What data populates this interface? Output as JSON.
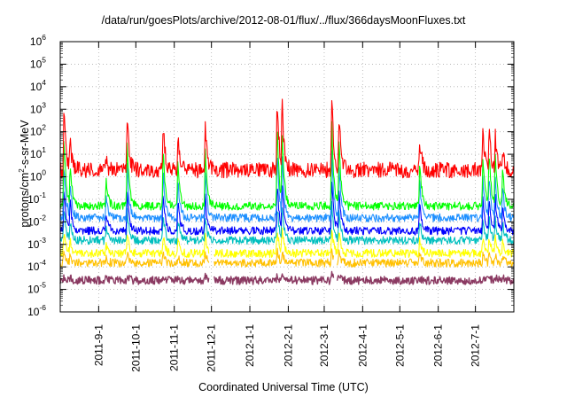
{
  "chart_data": {
    "type": "line",
    "title": "/data/run/goesPlots/archive/2012-08-01/flux/../flux/366daysMoonFluxes.txt",
    "xlabel": "Coordinated Universal Time (UTC)",
    "ylabel": {
      "pre": "protons/cm",
      "sup": "2",
      "post": "-s-sr-MeV"
    },
    "xlim": [
      "2011-08-01",
      "2012-08-01"
    ],
    "x_ticks": [
      "2011-9-1",
      "2011-10-1",
      "2011-11-1",
      "2011-12-1",
      "2012-1-1",
      "2012-2-1",
      "2012-3-1",
      "2012-4-1",
      "2012-5-1",
      "2012-6-1",
      "2012-7-1"
    ],
    "y_scale": "log",
    "ylim": [
      1e-06,
      1000000.0
    ],
    "y_ticks": [
      {
        "base": "10",
        "exp": "-6"
      },
      {
        "base": "10",
        "exp": "-5"
      },
      {
        "base": "10",
        "exp": "-4"
      },
      {
        "base": "10",
        "exp": "-3"
      },
      {
        "base": "10",
        "exp": "-2"
      },
      {
        "base": "10",
        "exp": "-1"
      },
      {
        "base": "10",
        "exp": "0"
      },
      {
        "base": "10",
        "exp": "1"
      },
      {
        "base": "10",
        "exp": "2"
      },
      {
        "base": "10",
        "exp": "3"
      },
      {
        "base": "10",
        "exp": "4"
      },
      {
        "base": "10",
        "exp": "5"
      },
      {
        "base": "10",
        "exp": "6"
      }
    ],
    "grid": true,
    "legend": "none",
    "series": [
      {
        "color": "#8b3a62",
        "baseline": 2.5e-05,
        "points": [
          [
            "2011-08-01",
            2.5e-05
          ],
          [
            "2011-12-01",
            2.5e-05
          ],
          [
            "2012-03-01",
            2.5e-05
          ],
          [
            "2012-08-01",
            2.5e-05
          ]
        ]
      },
      {
        "color": "#ffc000",
        "baseline": 0.00015,
        "points": [
          [
            "2011-08-01",
            0.00015
          ],
          [
            "2012-08-01",
            0.00015
          ]
        ]
      },
      {
        "color": "#ffff00",
        "baseline": 0.0004,
        "points": [
          [
            "2011-08-01",
            0.0004
          ],
          [
            "2012-08-01",
            0.0004
          ]
        ]
      },
      {
        "color": "#00bfbf",
        "baseline": 0.0015,
        "points": [
          [
            "2011-08-01",
            0.0015
          ],
          [
            "2012-08-01",
            0.0015
          ]
        ]
      },
      {
        "color": "#0000ff",
        "baseline": 0.004,
        "points": [
          [
            "2011-08-01",
            0.004
          ],
          [
            "2012-08-01",
            0.004
          ]
        ]
      },
      {
        "color": "#1e90ff",
        "baseline": 0.015,
        "points": [
          [
            "2011-08-01",
            0.015
          ],
          [
            "2012-08-01",
            0.015
          ]
        ]
      },
      {
        "color": "#00ff00",
        "baseline": 0.05,
        "points": [
          [
            "2011-08-01",
            0.05
          ],
          [
            "2012-08-01",
            0.05
          ]
        ]
      },
      {
        "color": "#ff0000",
        "baseline": 2.0,
        "points": [
          [
            "2011-08-01",
            2.0
          ],
          [
            "2012-08-01",
            2.0
          ]
        ]
      }
    ],
    "events": [
      {
        "date": "2011-08-04",
        "peak": 1500
      },
      {
        "date": "2011-08-09",
        "peak": 30
      },
      {
        "date": "2011-09-07",
        "peak": 5
      },
      {
        "date": "2011-09-24",
        "peak": 700
      },
      {
        "date": "2011-10-23",
        "peak": 350
      },
      {
        "date": "2011-11-04",
        "peak": 60
      },
      {
        "date": "2011-11-26",
        "peak": 150
      },
      {
        "date": "2012-01-23",
        "peak": 6000
      },
      {
        "date": "2012-01-27",
        "peak": 1500
      },
      {
        "date": "2012-03-07",
        "peak": 8000
      },
      {
        "date": "2012-03-13",
        "peak": 600
      },
      {
        "date": "2012-05-17",
        "peak": 60
      },
      {
        "date": "2012-07-07",
        "peak": 100
      },
      {
        "date": "2012-07-12",
        "peak": 150
      },
      {
        "date": "2012-07-17",
        "peak": 70
      },
      {
        "date": "2012-07-23",
        "peak": 20
      }
    ]
  }
}
